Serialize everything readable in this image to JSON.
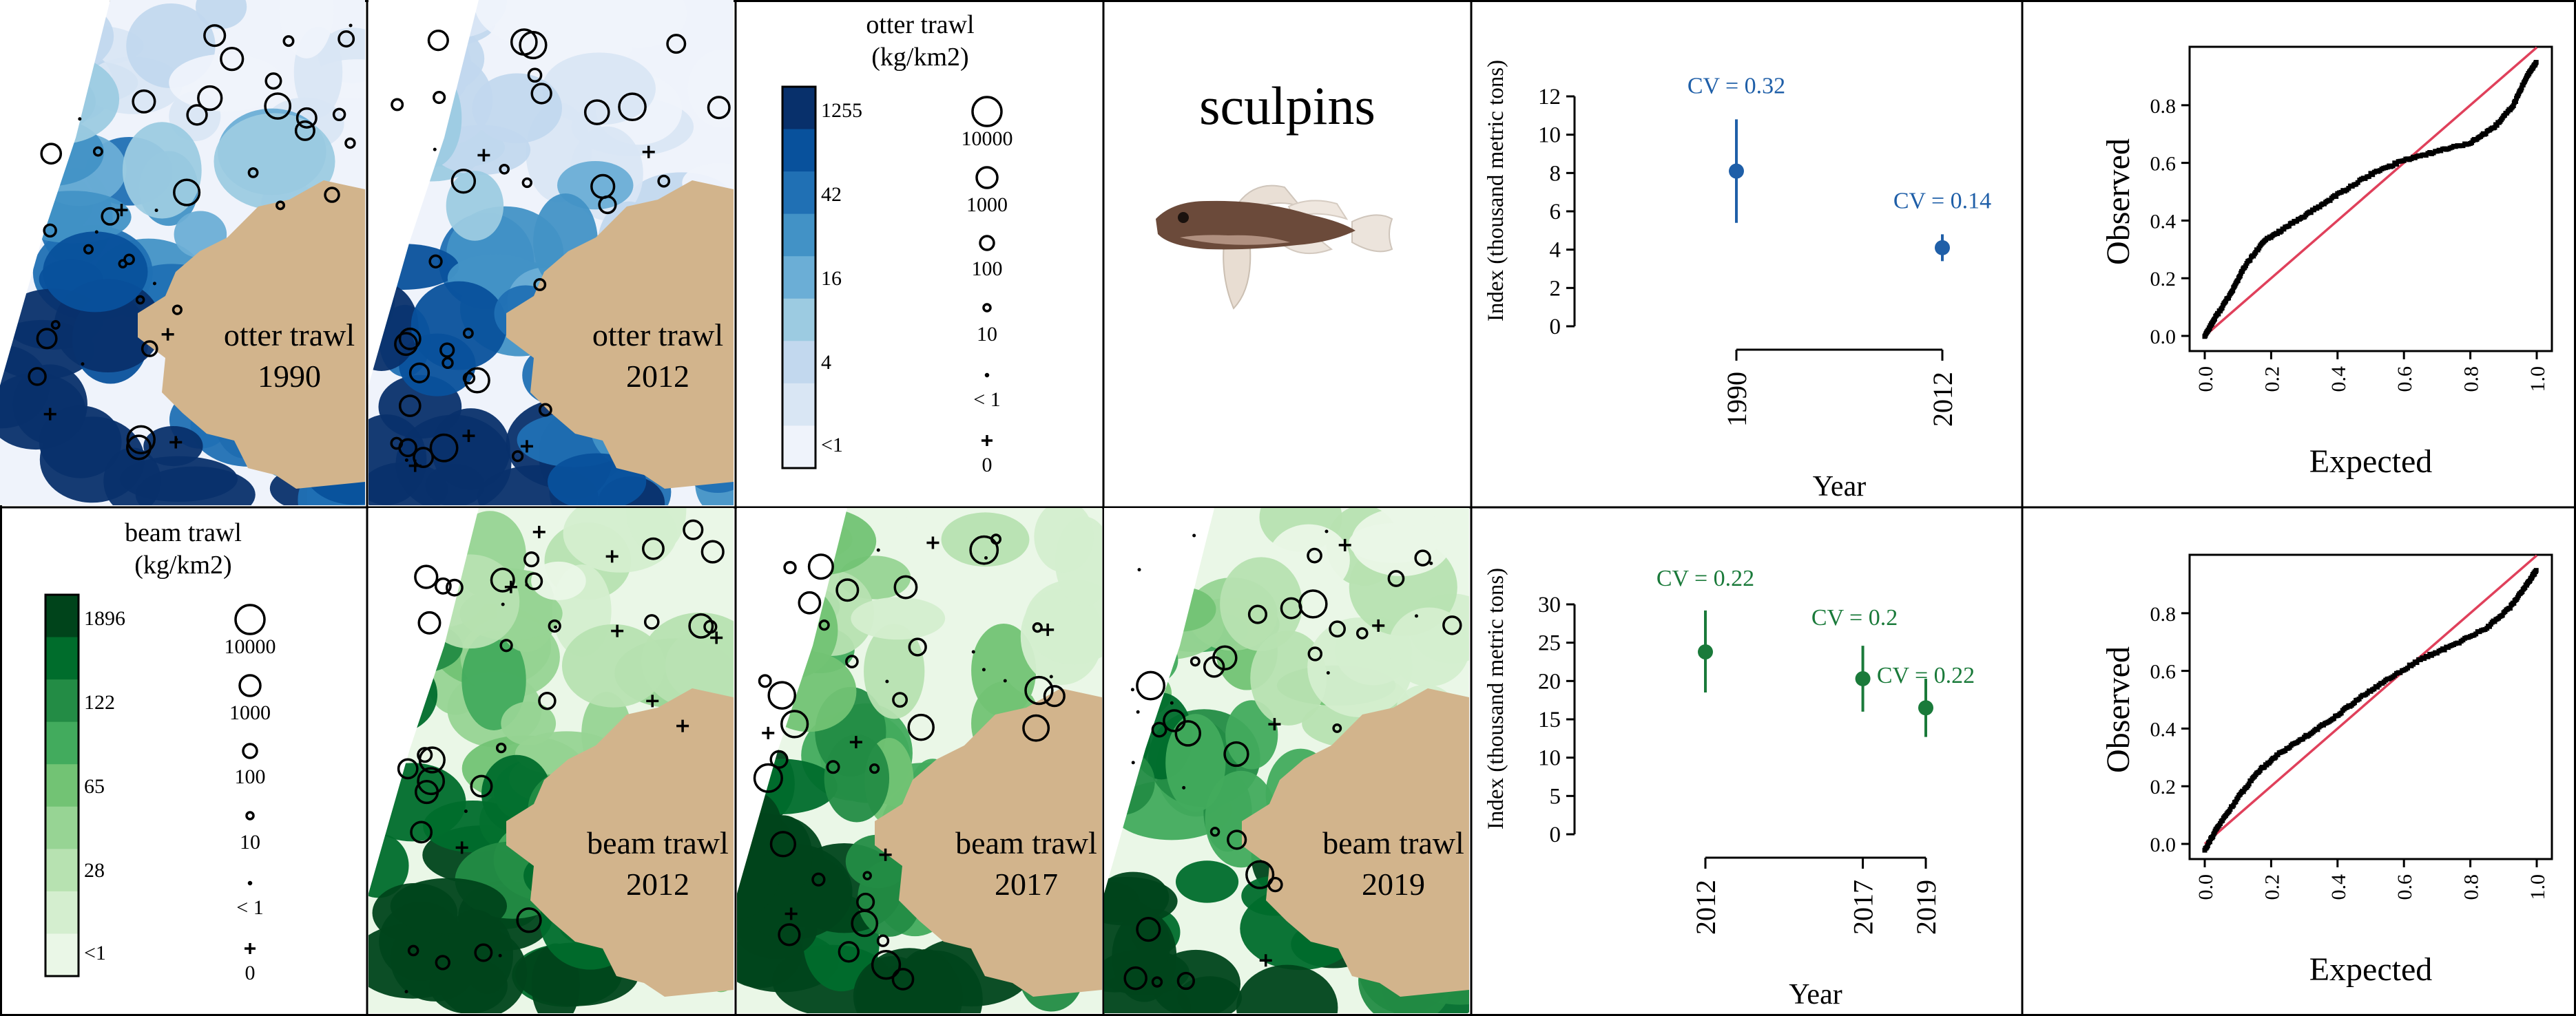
{
  "title": "sculpins",
  "colors": {
    "blue": [
      "#ffffff",
      "#eff3fb",
      "#d9e6f4",
      "#c2d8ee",
      "#9ccbe1",
      "#6baed6",
      "#4292c6",
      "#2070b4",
      "#08519c",
      "#08306b"
    ],
    "green": [
      "#ffffff",
      "#eaf7e7",
      "#d4eecf",
      "#b7e2b1",
      "#97d494",
      "#72c374",
      "#42ab5d",
      "#238c45",
      "#006d2c",
      "#00441b"
    ],
    "land": "#d2b48c",
    "otter_series": "#1f5fa8",
    "beam_series": "#1a7a3a",
    "qq_line": "#e0405b"
  },
  "maps": {
    "otter": [
      {
        "survey": "otter trawl",
        "year": "1990",
        "palette": "blue",
        "level": 0.62
      },
      {
        "survey": "otter trawl",
        "year": "2012",
        "palette": "blue",
        "level": 0.4
      }
    ],
    "beam": [
      {
        "survey": "beam trawl",
        "year": "2012",
        "palette": "green",
        "level": 0.6
      },
      {
        "survey": "beam trawl",
        "year": "2017",
        "palette": "green",
        "level": 0.66
      },
      {
        "survey": "beam trawl",
        "year": "2019",
        "palette": "green",
        "level": 0.55
      }
    ]
  },
  "legends": {
    "otter": {
      "title_line1": "otter trawl",
      "title_line2": "(kg/km2)",
      "breaks": [
        "1255",
        "42",
        "16",
        "4",
        "<1"
      ],
      "sizes": [
        "10000",
        "1000",
        "100",
        "10",
        "< 1",
        "0"
      ]
    },
    "beam": {
      "title_line1": "beam trawl",
      "title_line2": "(kg/km2)",
      "breaks": [
        "1896",
        "122",
        "65",
        "28",
        "<1"
      ],
      "sizes": [
        "10000",
        "1000",
        "100",
        "10",
        "< 1",
        "0"
      ]
    }
  },
  "chart_data": [
    {
      "type": "scatter",
      "name": "otter-index",
      "ylabel": "Index (thousand metric tons)",
      "xlabel": "Year",
      "ylim": [
        0,
        12
      ],
      "yticks": [
        0,
        2,
        4,
        6,
        8,
        10,
        12
      ],
      "x": [
        "1990",
        "2012"
      ],
      "points": [
        {
          "x": 1990,
          "y": 8.1,
          "lower": 5.4,
          "upper": 10.8,
          "label": "CV = 0.32"
        },
        {
          "x": 2012,
          "y": 4.1,
          "lower": 3.4,
          "upper": 4.8,
          "label": "CV = 0.14"
        }
      ]
    },
    {
      "type": "scatter",
      "name": "otter-qq",
      "xlabel": "Expected",
      "ylabel": "Observed",
      "xlim": [
        0,
        1
      ],
      "ylim": [
        0,
        1
      ],
      "xticks": [
        "0.0",
        "0.2",
        "0.4",
        "0.6",
        "0.8",
        "1.0"
      ],
      "yticks": [
        "0.0",
        "0.2",
        "0.4",
        "0.6",
        "0.8"
      ],
      "curve": [
        [
          0,
          0
        ],
        [
          0.03,
          0.06
        ],
        [
          0.08,
          0.15
        ],
        [
          0.12,
          0.24
        ],
        [
          0.18,
          0.33
        ],
        [
          0.25,
          0.38
        ],
        [
          0.32,
          0.43
        ],
        [
          0.4,
          0.49
        ],
        [
          0.5,
          0.56
        ],
        [
          0.6,
          0.61
        ],
        [
          0.7,
          0.64
        ],
        [
          0.8,
          0.67
        ],
        [
          0.87,
          0.72
        ],
        [
          0.93,
          0.8
        ],
        [
          0.97,
          0.9
        ],
        [
          1,
          0.95
        ]
      ]
    },
    {
      "type": "scatter",
      "name": "beam-index",
      "ylabel": "Index (thousand metric tons)",
      "xlabel": "Year",
      "ylim": [
        0,
        30
      ],
      "yticks": [
        0,
        5,
        10,
        15,
        20,
        25,
        30
      ],
      "x": [
        "2012",
        "2017",
        "2019"
      ],
      "points": [
        {
          "x": 2012,
          "y": 23.8,
          "lower": 18.5,
          "upper": 29.2,
          "label": "CV = 0.22"
        },
        {
          "x": 2017,
          "y": 20.3,
          "lower": 16.0,
          "upper": 24.6,
          "label": "CV = 0.2"
        },
        {
          "x": 2019,
          "y": 16.5,
          "lower": 12.7,
          "upper": 20.3,
          "label": "CV = 0.22"
        }
      ]
    },
    {
      "type": "scatter",
      "name": "beam-qq",
      "xlabel": "Expected",
      "ylabel": "Observed",
      "xlim": [
        0,
        1
      ],
      "ylim": [
        0,
        1
      ],
      "xticks": [
        "0.0",
        "0.2",
        "0.4",
        "0.6",
        "0.8",
        "1.0"
      ],
      "yticks": [
        "0.0",
        "0.2",
        "0.4",
        "0.6",
        "0.8"
      ],
      "curve": [
        [
          0,
          -0.02
        ],
        [
          0.04,
          0.06
        ],
        [
          0.1,
          0.16
        ],
        [
          0.16,
          0.25
        ],
        [
          0.22,
          0.31
        ],
        [
          0.3,
          0.37
        ],
        [
          0.38,
          0.43
        ],
        [
          0.46,
          0.5
        ],
        [
          0.55,
          0.57
        ],
        [
          0.65,
          0.64
        ],
        [
          0.75,
          0.69
        ],
        [
          0.85,
          0.75
        ],
        [
          0.92,
          0.82
        ],
        [
          0.97,
          0.9
        ],
        [
          1,
          0.95
        ]
      ]
    }
  ]
}
